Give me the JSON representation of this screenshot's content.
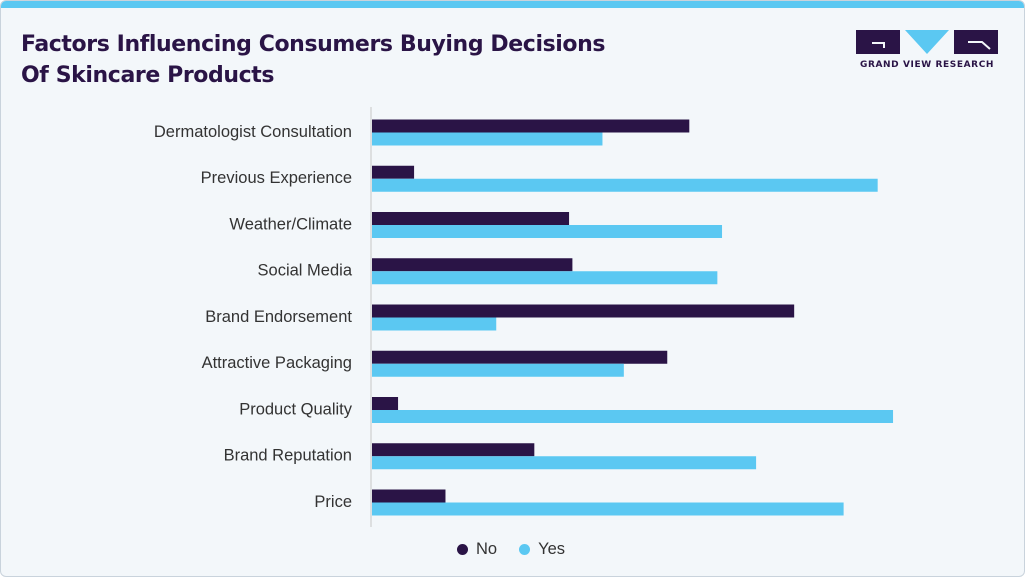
{
  "title_lines": [
    "Factors Influencing Consumers Buying Decisions",
    "Of Skincare Products"
  ],
  "logo": {
    "text": "GRAND VIEW RESEARCH"
  },
  "colors": {
    "no": "#2a1446",
    "yes": "#5bc8f2",
    "accent": "#5bc8f2",
    "title": "#2a1446"
  },
  "chart_data": {
    "type": "bar",
    "orientation": "horizontal",
    "title": "Factors Influencing Consumers Buying Decisions Of Skincare Products",
    "categories": [
      "Dermatologist Consultation",
      "Previous Experience",
      "Weather/Climate",
      "Social Media",
      "Brand Endorsement",
      "Attractive Packaging",
      "Product Quality",
      "Brand Reputation",
      "Price"
    ],
    "series": [
      {
        "name": "No",
        "values": [
          47.5,
          6.3,
          29.5,
          30.0,
          63.2,
          44.2,
          3.9,
          24.3,
          11.0
        ]
      },
      {
        "name": "Yes",
        "values": [
          34.5,
          75.7,
          52.4,
          51.7,
          18.6,
          37.7,
          78.0,
          57.5,
          70.6
        ]
      }
    ],
    "xlim": [
      0,
      100
    ],
    "xlabel": "",
    "ylabel": "",
    "grid": false,
    "legend": "bottom-center"
  }
}
